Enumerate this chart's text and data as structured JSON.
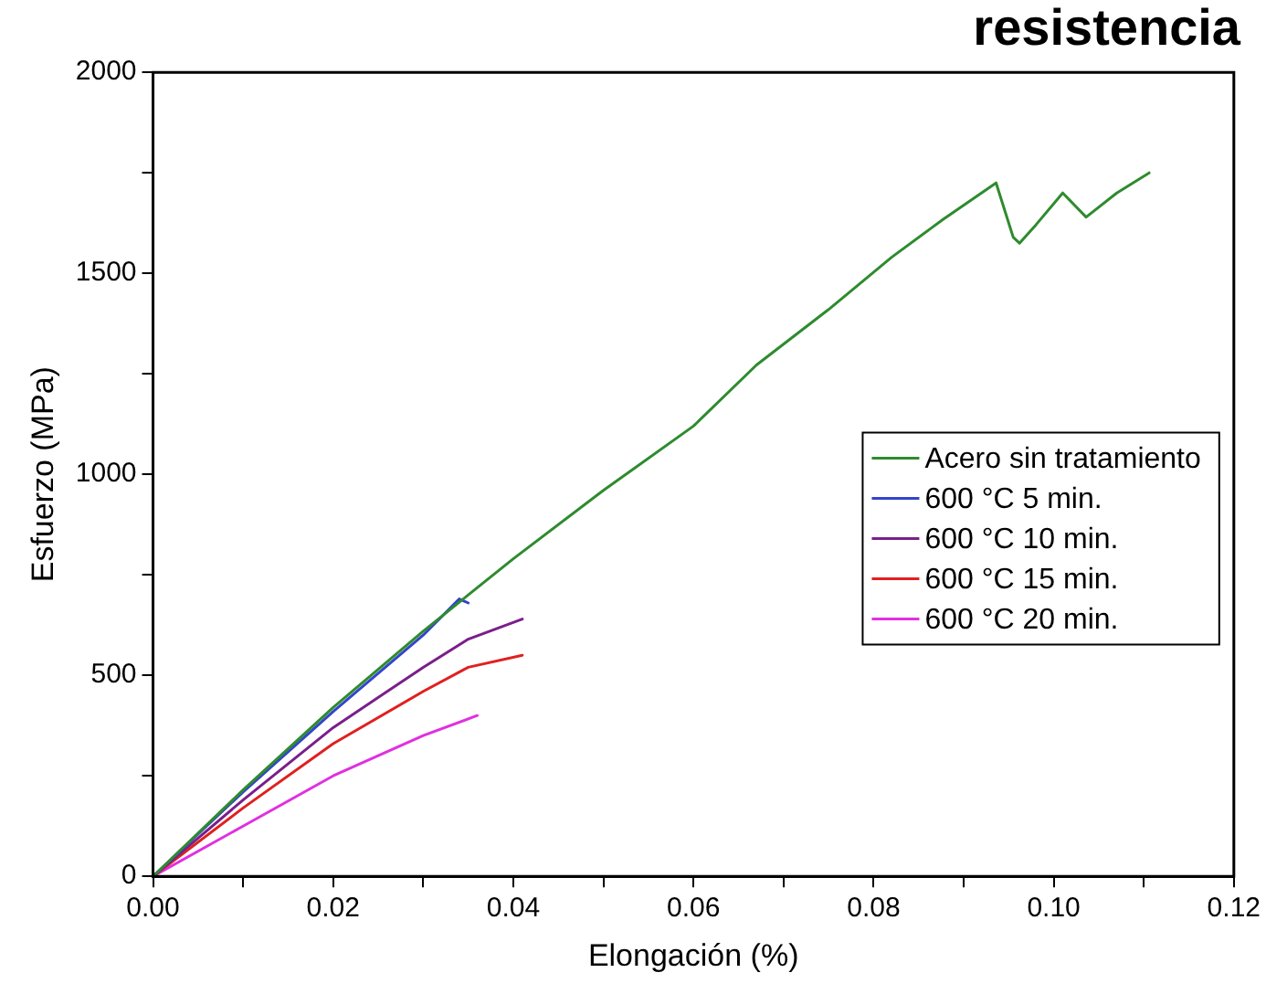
{
  "chart_data": {
    "type": "line",
    "title": "resistencia",
    "xlabel": "Elongación (%)",
    "ylabel": "Esfuerzo (MPa)",
    "xlim": [
      0,
      0.12
    ],
    "ylim": [
      0,
      2000
    ],
    "xticks": [
      {
        "value": 0,
        "label": "0.00"
      },
      {
        "value": 0.01,
        "label": null
      },
      {
        "value": 0.02,
        "label": "0.02"
      },
      {
        "value": 0.03,
        "label": null
      },
      {
        "value": 0.04,
        "label": "0.04"
      },
      {
        "value": 0.05,
        "label": null
      },
      {
        "value": 0.06,
        "label": "0.06"
      },
      {
        "value": 0.07,
        "label": null
      },
      {
        "value": 0.08,
        "label": "0.08"
      },
      {
        "value": 0.09,
        "label": null
      },
      {
        "value": 0.1,
        "label": "0.10"
      },
      {
        "value": 0.11,
        "label": null
      },
      {
        "value": 0.12,
        "label": "0.12"
      }
    ],
    "yticks": [
      0,
      {
        "value": 250,
        "label": null
      },
      500,
      {
        "value": 750,
        "label": null
      },
      1000,
      {
        "value": 1250,
        "label": null
      },
      1500,
      {
        "value": 1750,
        "label": null
      },
      2000
    ],
    "grid": false,
    "legend": "right",
    "marker": "none",
    "line_style": "solid",
    "series": [
      {
        "name": "Acero sin tratamiento",
        "color": "#2e8b2e",
        "x": [
          0,
          0.01,
          0.02,
          0.03,
          0.04,
          0.05,
          0.06,
          0.067,
          0.075,
          0.082,
          0.0877,
          0.0936,
          0.0955,
          0.0962,
          0.098,
          0.101,
          0.1036,
          0.107,
          0.1106
        ],
        "values": [
          0,
          215,
          420,
          610,
          790,
          960,
          1120,
          1272,
          1410,
          1540,
          1634,
          1725,
          1590,
          1575,
          1620,
          1700,
          1640,
          1700,
          1750
        ]
      },
      {
        "name": "600 °C 5 min.",
        "color": "#3344cc",
        "x": [
          0,
          0.01,
          0.02,
          0.03,
          0.034,
          0.035
        ],
        "values": [
          0,
          210,
          410,
          600,
          690,
          680
        ]
      },
      {
        "name": "600 °C 10 min.",
        "color": "#7a1f8a",
        "x": [
          0,
          0.01,
          0.02,
          0.03,
          0.035,
          0.041
        ],
        "values": [
          0,
          190,
          370,
          520,
          590,
          640
        ]
      },
      {
        "name": "600 °C 15 min.",
        "color": "#e02020",
        "x": [
          0,
          0.01,
          0.02,
          0.03,
          0.035,
          0.041
        ],
        "values": [
          0,
          170,
          330,
          460,
          520,
          550
        ]
      },
      {
        "name": "600 °C 20 min.",
        "color": "#e030e0",
        "x": [
          0,
          0.01,
          0.02,
          0.03,
          0.036
        ],
        "values": [
          0,
          125,
          250,
          350,
          400
        ]
      }
    ]
  }
}
